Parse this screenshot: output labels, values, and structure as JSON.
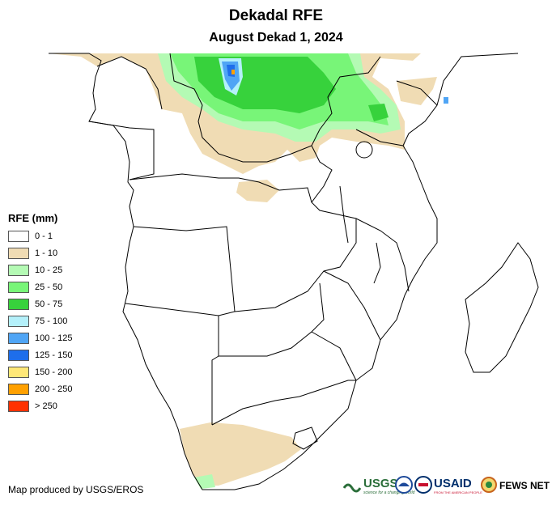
{
  "header": {
    "title": "Dekadal RFE",
    "subtitle": "August Dekad 1, 2024"
  },
  "legend": {
    "title": "RFE (mm)",
    "items": [
      {
        "label": "0 - 1",
        "color": "#ffffff"
      },
      {
        "label": "1 - 10",
        "color": "#f0dcb4"
      },
      {
        "label": "10 - 25",
        "color": "#b4fab4"
      },
      {
        "label": "25 - 50",
        "color": "#78f578"
      },
      {
        "label": "50 - 75",
        "color": "#37d23c"
      },
      {
        "label": "75 - 100",
        "color": "#b4f0fa"
      },
      {
        "label": "100 - 125",
        "color": "#50a5f5"
      },
      {
        "label": "125 - 150",
        "color": "#1e6eeb"
      },
      {
        "label": "150 - 200",
        "color": "#ffe878"
      },
      {
        "label": "200 - 250",
        "color": "#ffa000"
      },
      {
        "label": "> 250",
        "color": "#ff3200"
      }
    ]
  },
  "footer": {
    "credit": "Map produced by USGS/EROS"
  },
  "logos": {
    "usgs": "USGS",
    "usgs_tagline": "science for a changing world",
    "usaid": "USAID",
    "usaid_tagline": "FROM THE AMERICAN PEOPLE",
    "fewsnet": "FEWS NET"
  },
  "colors": {
    "border": "#000000",
    "usgs_green": "#2b6e3a",
    "usaid_blue": "#002f6c",
    "usaid_red": "#c8102e"
  }
}
